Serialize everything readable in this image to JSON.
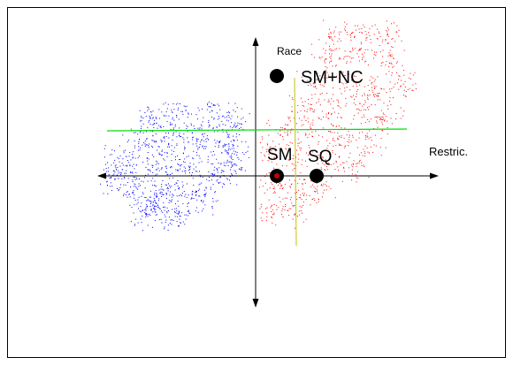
{
  "diagram": {
    "labels": {
      "vertical_axis": "Race",
      "horizontal_axis": "Restric.",
      "points": [
        "SM+NC",
        "SM",
        "SQ"
      ]
    },
    "colors": {
      "frame": "#000000",
      "axes": "#000000",
      "green_line": "#00dd00",
      "yellow_line": "#cccc33",
      "blue_cluster": "#0000ff",
      "red_cluster": "#ff0000",
      "points": "#000000",
      "background": "#ffffff"
    }
  }
}
